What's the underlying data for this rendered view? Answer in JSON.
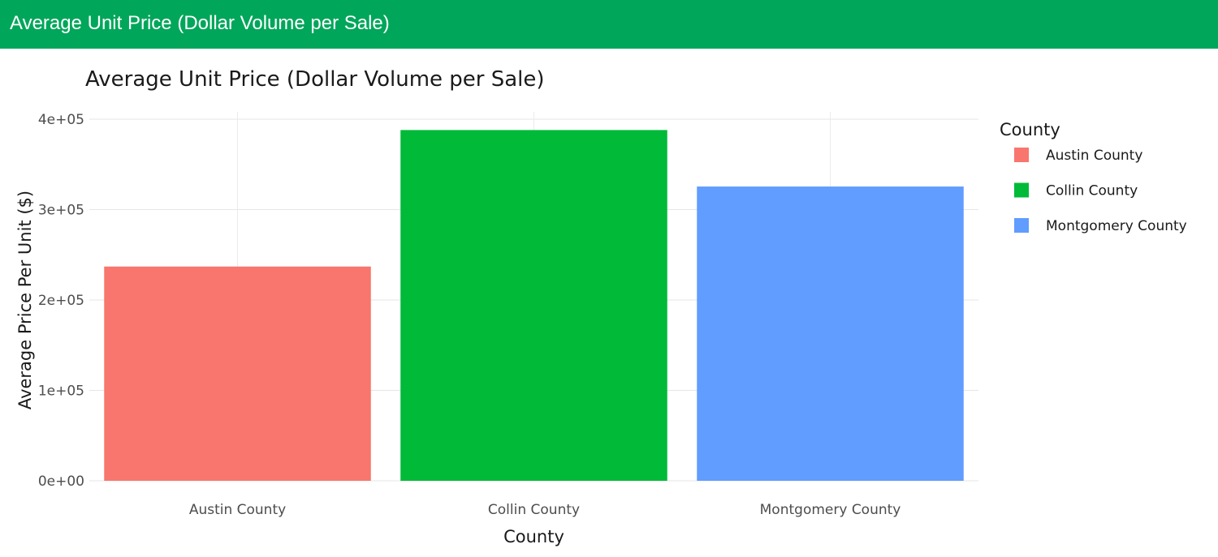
{
  "header": {
    "title": "Average Unit Price (Dollar Volume per Sale)"
  },
  "chart_data": {
    "type": "bar",
    "title": "Average Unit Price (Dollar Volume per Sale)",
    "xlabel": "County",
    "ylabel": "Average Price Per Unit ($)",
    "categories": [
      "Austin County",
      "Collin County",
      "Montgomery County"
    ],
    "values": [
      237000,
      388000,
      325500
    ],
    "colors": [
      "#f8766d",
      "#00ba38",
      "#619cff"
    ],
    "ylim": [
      0,
      400000
    ],
    "yticks": [
      0,
      100000,
      200000,
      300000,
      400000
    ],
    "ytick_labels": [
      "0e+00",
      "1e+05",
      "2e+05",
      "3e+05",
      "4e+05"
    ],
    "grid": true,
    "legend": {
      "title": "County",
      "placement": "right",
      "entries": [
        "Austin County",
        "Collin County",
        "Montgomery County"
      ]
    }
  }
}
